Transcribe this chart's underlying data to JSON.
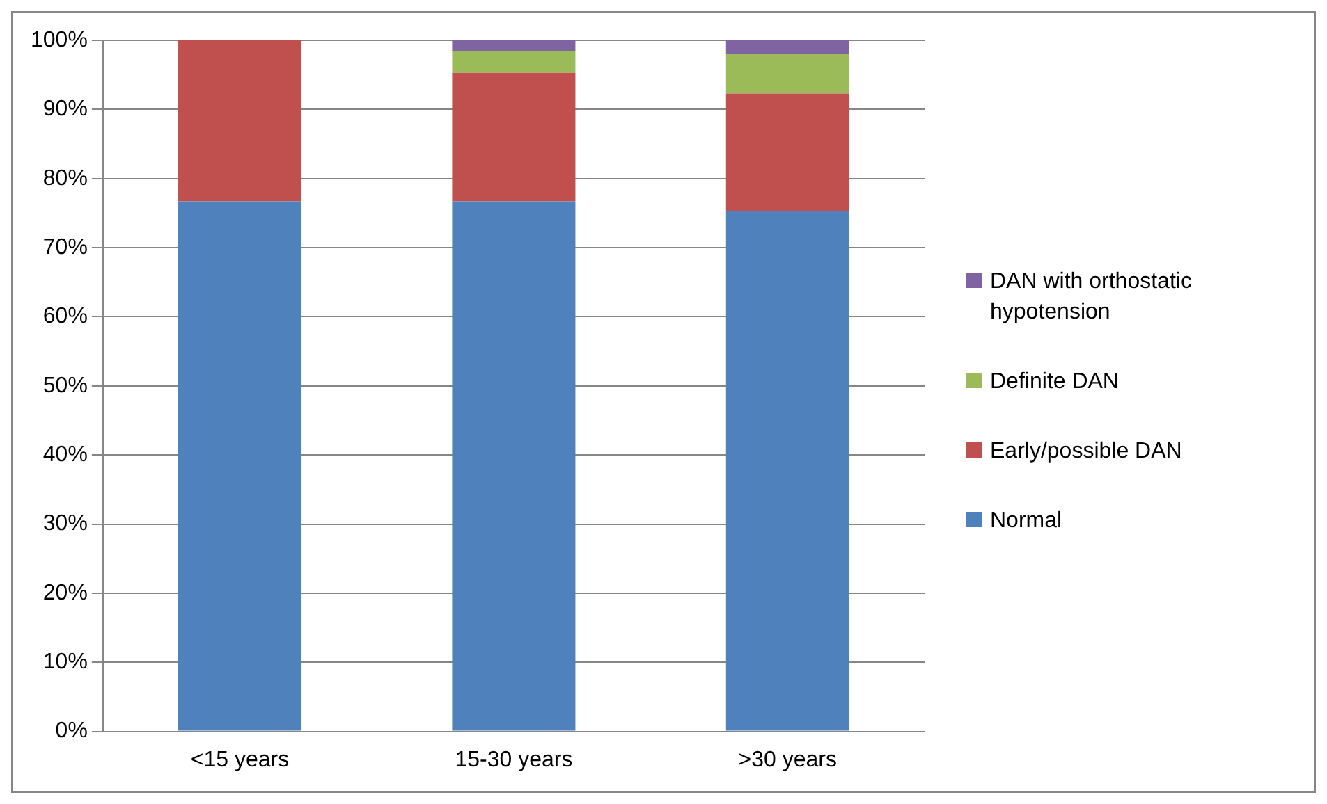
{
  "chart_data": {
    "type": "bar",
    "stacked": true,
    "categories": [
      "<15 years",
      "15-30 years",
      ">30 years"
    ],
    "series": [
      {
        "name": "Normal",
        "color": "#4f81bd",
        "values": [
          76.7,
          76.7,
          75.3
        ]
      },
      {
        "name": "Early/possible DAN",
        "color": "#c0504d",
        "values": [
          23.3,
          18.6,
          17.0
        ]
      },
      {
        "name": "Definite DAN",
        "color": "#9bbb59",
        "values": [
          0,
          3.2,
          5.8
        ]
      },
      {
        "name": "DAN with orthostatic hypotension",
        "color": "#8064a2",
        "values": [
          0,
          1.5,
          1.9
        ]
      }
    ],
    "ylim": [
      0,
      100
    ],
    "yticks": [
      {
        "value": 0,
        "label": "0%"
      },
      {
        "value": 10,
        "label": "10%"
      },
      {
        "value": 20,
        "label": "20%"
      },
      {
        "value": 30,
        "label": "30%"
      },
      {
        "value": 40,
        "label": "40%"
      },
      {
        "value": 50,
        "label": "50%"
      },
      {
        "value": 60,
        "label": "60%"
      },
      {
        "value": 70,
        "label": "70%"
      },
      {
        "value": 80,
        "label": "80%"
      },
      {
        "value": 90,
        "label": "90%"
      },
      {
        "value": 100,
        "label": "100%"
      }
    ],
    "grid": "y",
    "legend": "right"
  }
}
